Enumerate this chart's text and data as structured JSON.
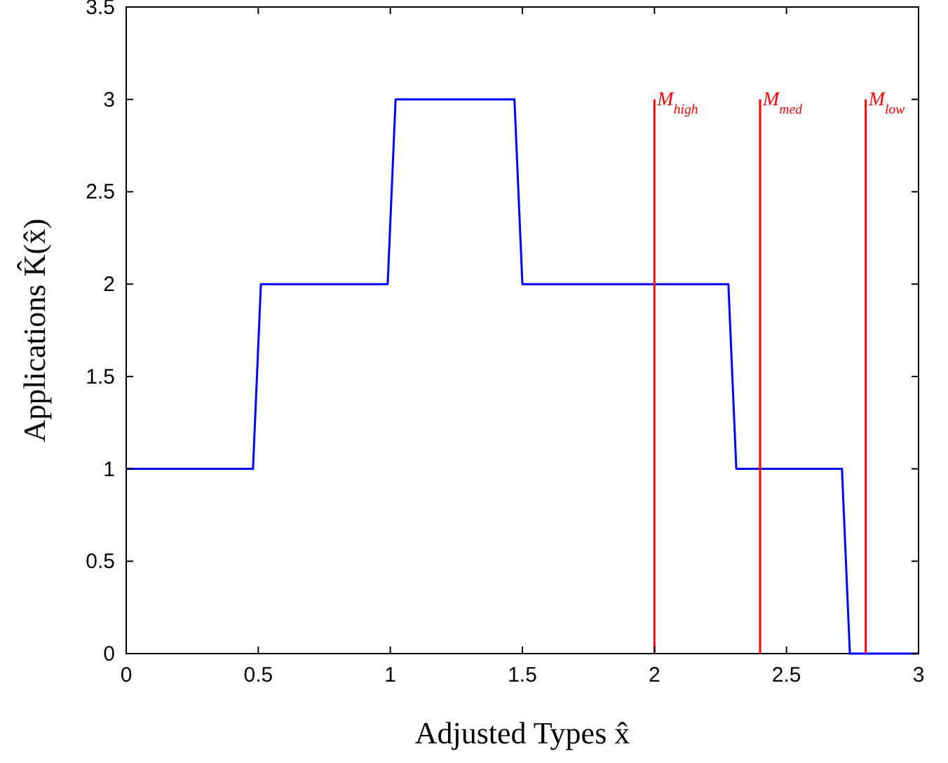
{
  "chart_data": {
    "type": "line",
    "xlabel": "Adjusted Types x̂",
    "ylabel": "Applications K̂(x̂)",
    "xlim": [
      0,
      3
    ],
    "ylim": [
      0,
      3.5
    ],
    "xticks": [
      0,
      0.5,
      1,
      1.5,
      2,
      2.5,
      3
    ],
    "yticks": [
      0,
      0.5,
      1,
      1.5,
      2,
      2.5,
      3,
      3.5
    ],
    "grid": false,
    "series": [
      {
        "color": "#0000ff",
        "x": [
          0,
          0.48,
          0.51,
          0.99,
          1.02,
          1.47,
          1.5,
          2.28,
          2.31,
          2.71,
          2.74,
          3
        ],
        "values": [
          1,
          1,
          2,
          2,
          3,
          3,
          2,
          2,
          1,
          1,
          0,
          0
        ]
      },
      {
        "name": "M$_{high}$",
        "color": "#ff0000",
        "x": [
          2,
          2
        ],
        "values": [
          0,
          3
        ]
      },
      {
        "name": "M$_{med}$",
        "color": "#ff0000",
        "x": [
          2.4,
          2.4
        ],
        "values": [
          0,
          3
        ]
      },
      {
        "name": "M$_{low}$",
        "color": "#ff0000",
        "x": [
          2.8,
          2.8
        ],
        "values": [
          0,
          3
        ]
      }
    ]
  }
}
